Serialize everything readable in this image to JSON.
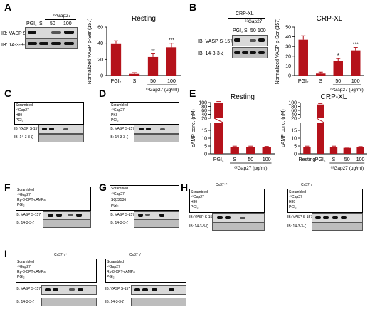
{
  "panels": {
    "A": {
      "label": "A",
      "blot": {
        "header": "⁶²Gap27",
        "lanes": [
          "PGI₂",
          "S",
          "50",
          "100"
        ],
        "rows": [
          "IB: VASP S-157",
          "IB: 14-3-3-ζ"
        ]
      }
    },
    "B": {
      "label": "B",
      "blot": {
        "title": "CRP-XL",
        "header": "⁶²Gap27",
        "lanes": [
          "PGI₂",
          "S",
          "50",
          "100"
        ],
        "rows": [
          "IB: VASP S-157",
          "IB: 14-3-3-ζ"
        ]
      }
    },
    "C": {
      "label": "C",
      "rows": [
        "Scrambled",
        "⁴³Gap27",
        "H89",
        "PGI₂"
      ],
      "blot_rows": [
        "IB: VASP S-157",
        "IB: 14-3-3-ζ"
      ]
    },
    "D": {
      "label": "D",
      "rows": [
        "Scrambled",
        "⁴³Gap27",
        "PKI",
        "PGI₂"
      ],
      "blot_rows": [
        "IB: VASP S-157",
        "IB: 14-3-3-ζ"
      ]
    },
    "E": {
      "label": "E"
    },
    "F": {
      "label": "F",
      "rows": [
        "Scrambled",
        "⁴³Gap27",
        "Rp-8-CPT-cAMPs",
        "PGI₂"
      ],
      "blot_rows": [
        "IB: VASP S-157",
        "IB: 14-3-3-ζ"
      ]
    },
    "G": {
      "label": "G",
      "rows": [
        "Scrambled",
        "⁴³Gap27",
        "SQ22536",
        "PGI₂"
      ],
      "blot_rows": [
        "IB: VASP S-157",
        "IB: 14-3-3-ζ"
      ]
    },
    "H": {
      "label": "H",
      "titles": [
        "Cx37⁺/⁺",
        "Cx37⁻/⁻"
      ],
      "rows": [
        "Scrambled",
        "⁴³Gap27",
        "H89",
        "PGI₂"
      ],
      "blot_rows": [
        "IB: VASP S-157",
        "IB: 14-3-3-ζ"
      ]
    },
    "I": {
      "label": "I",
      "titles": [
        "Cx37⁺/⁺",
        "Cx37⁻/⁻"
      ],
      "rows": [
        "Scrambled",
        "⁴³Gap27",
        "Rp-8-CPT-cAMPs",
        "PGI₂"
      ],
      "blot_rows": [
        "IB: VASP S-157",
        "IB: 14-3-3-ζ"
      ]
    }
  },
  "chart_data": [
    {
      "id": "A-bar",
      "type": "bar",
      "title": "Resting",
      "categories": [
        "PGI₂",
        "S",
        "50",
        "100"
      ],
      "values": [
        39,
        2,
        23,
        35
      ],
      "errors": [
        4,
        1.5,
        4,
        5
      ],
      "sig": [
        "",
        "",
        "**",
        "***"
      ],
      "ylabel": "Normalized VASP p-Ser (157)",
      "xlabel": "⁶²Gap27 (μg/ml)",
      "ylim": [
        0,
        60
      ],
      "yticks": [
        0,
        20,
        40,
        60
      ],
      "color": "#b5121b"
    },
    {
      "id": "B-bar",
      "type": "bar",
      "title": "CRP-XL",
      "categories": [
        "PGI₂",
        "S",
        "50",
        "100"
      ],
      "values": [
        37,
        2,
        15,
        26
      ],
      "errors": [
        4,
        1.5,
        2.5,
        3
      ],
      "sig": [
        "",
        "",
        "*",
        "***"
      ],
      "ylabel": "Normalized VASP p-Ser (157)",
      "xlabel": "⁶²Gap27 (μg/ml)",
      "ylim": [
        0,
        50
      ],
      "yticks": [
        0,
        10,
        20,
        30,
        40,
        50
      ],
      "color": "#b5121b"
    },
    {
      "id": "E-rest",
      "type": "bar",
      "title": "Resting",
      "categories": [
        "PGI₂",
        "S",
        "50",
        "100"
      ],
      "values": [
        100,
        4.5,
        4.5,
        4.3
      ],
      "errors": [
        5,
        0.4,
        0.4,
        0.4
      ],
      "ylabel": "cAMP conc. (nM)",
      "xlabel": "⁶²Gap27 (μg/ml)",
      "ylim": [
        0,
        100
      ],
      "yticks": [
        0,
        5,
        10,
        15,
        20,
        40,
        60,
        80,
        100
      ],
      "color": "#b5121b"
    },
    {
      "id": "E-crp",
      "type": "bar",
      "title": "CRP-XL",
      "categories": [
        "Resting",
        "PGI₂",
        "S",
        "50",
        "100"
      ],
      "values": [
        4.5,
        90,
        4.5,
        3.8,
        4.2
      ],
      "errors": [
        0.4,
        5,
        0.4,
        0.4,
        0.4
      ],
      "ylabel": "cAMP conc. (nM)",
      "xlabel": "⁶²Gap27 (μg/ml)",
      "ylim": [
        0,
        100
      ],
      "yticks": [
        0,
        5,
        10,
        15,
        20,
        40,
        60,
        80,
        100
      ],
      "color": "#b5121b"
    }
  ]
}
